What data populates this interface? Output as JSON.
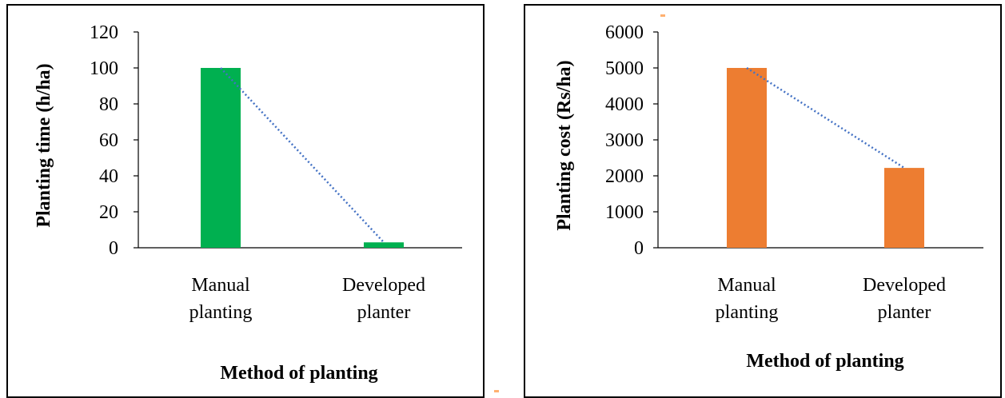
{
  "chart_data": [
    {
      "type": "bar",
      "categories": [
        [
          "Manual",
          "planting"
        ],
        [
          "Developed",
          "planter"
        ]
      ],
      "values": [
        100,
        3
      ],
      "xlabel": "Method of planting",
      "ylabel": "Planting time (h/ha)",
      "ylim": [
        0,
        120
      ],
      "yticks": [
        "0",
        "20",
        "40",
        "60",
        "80",
        "100",
        "120"
      ],
      "trendline": "dotted linear",
      "colors": {
        "bar": "#00b050",
        "trendline": "#4472c4",
        "axis": "#000000"
      }
    },
    {
      "type": "bar",
      "categories": [
        [
          "Manual",
          "planting"
        ],
        [
          "Developed",
          "planter"
        ]
      ],
      "values": [
        5000,
        2220
      ],
      "xlabel": "Method of planting",
      "ylabel": "Planting cost (Rs/ha)",
      "ylim": [
        0,
        6000
      ],
      "yticks": [
        "0",
        "1000",
        "2000",
        "3000",
        "4000",
        "5000",
        "6000"
      ],
      "trendline": "dotted linear",
      "colors": {
        "bar": "#ed7d31",
        "trendline": "#4472c4",
        "axis": "#000000"
      }
    }
  ]
}
